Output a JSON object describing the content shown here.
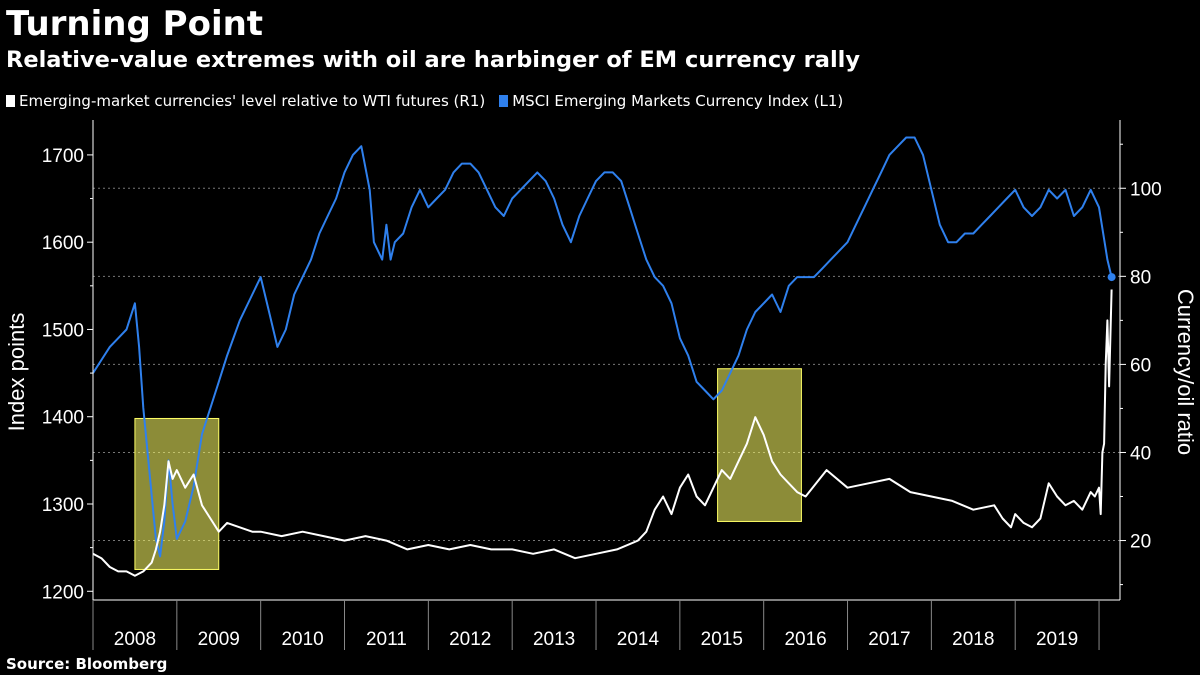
{
  "header": {
    "title": "Turning Point",
    "subtitle": "Relative-value extremes with oil are harbinger of EM currency rally"
  },
  "legend": [
    {
      "label": "Emerging-market currencies' level relative to WTI futures (R1)",
      "color": "#ffffff"
    },
    {
      "label": "MSCI Emerging Markets Currency Index (L1)",
      "color": "#2f80ed"
    }
  ],
  "footer": {
    "source": "Source: Bloomberg"
  },
  "chart_data": {
    "type": "line",
    "title": "Turning Point",
    "subtitle": "Relative-value extremes with oil are harbinger of EM currency rally",
    "x_labels": [
      "2008",
      "2009",
      "2010",
      "2011",
      "2012",
      "2013",
      "2014",
      "2015",
      "2016",
      "2017",
      "2018",
      "2019"
    ],
    "xlim": [
      2008.0,
      2020.25
    ],
    "left_axis": {
      "label": "Index points",
      "ylim": [
        1190,
        1740
      ],
      "ticks": [
        1200,
        1300,
        1400,
        1500,
        1600,
        1700
      ]
    },
    "right_axis": {
      "label": "Currency/oil ratio",
      "ylim": [
        6.5,
        115.5
      ],
      "ticks": [
        20,
        40,
        60,
        80,
        100
      ]
    },
    "grid": true,
    "legend_position": "top-left",
    "highlights": [
      {
        "x_range": [
          2008.5,
          2009.5
        ],
        "y_left_range": [
          1225,
          1398
        ],
        "color": "#ffff66"
      },
      {
        "x_range": [
          2015.45,
          2016.45
        ],
        "y_left_range": [
          1280,
          1455
        ],
        "color": "#ffff66"
      }
    ],
    "series": [
      {
        "name": "MSCI Emerging Markets Currency Index (L1)",
        "axis": "left",
        "color": "#2f80ed",
        "x": [
          2008.0,
          2008.1,
          2008.2,
          2008.3,
          2008.4,
          2008.5,
          2008.55,
          2008.6,
          2008.65,
          2008.7,
          2008.75,
          2008.8,
          2008.85,
          2008.9,
          2008.95,
          2009.0,
          2009.1,
          2009.2,
          2009.3,
          2009.4,
          2009.5,
          2009.6,
          2009.75,
          2009.9,
          2010.0,
          2010.1,
          2010.2,
          2010.3,
          2010.4,
          2010.5,
          2010.6,
          2010.7,
          2010.8,
          2010.9,
          2011.0,
          2011.1,
          2011.2,
          2011.3,
          2011.35,
          2011.45,
          2011.5,
          2011.55,
          2011.6,
          2011.7,
          2011.8,
          2011.9,
          2012.0,
          2012.1,
          2012.2,
          2012.3,
          2012.4,
          2012.5,
          2012.6,
          2012.7,
          2012.8,
          2012.9,
          2013.0,
          2013.1,
          2013.2,
          2013.3,
          2013.4,
          2013.5,
          2013.6,
          2013.7,
          2013.8,
          2013.9,
          2014.0,
          2014.1,
          2014.2,
          2014.3,
          2014.4,
          2014.5,
          2014.6,
          2014.7,
          2014.8,
          2014.9,
          2015.0,
          2015.1,
          2015.2,
          2015.3,
          2015.4,
          2015.5,
          2015.6,
          2015.7,
          2015.8,
          2015.9,
          2016.0,
          2016.1,
          2016.2,
          2016.3,
          2016.4,
          2016.5,
          2016.6,
          2016.7,
          2016.8,
          2016.9,
          2017.0,
          2017.1,
          2017.2,
          2017.3,
          2017.4,
          2017.5,
          2017.6,
          2017.7,
          2017.8,
          2017.9,
          2018.0,
          2018.1,
          2018.2,
          2018.3,
          2018.4,
          2018.5,
          2018.6,
          2018.7,
          2018.8,
          2018.9,
          2019.0,
          2019.1,
          2019.2,
          2019.3,
          2019.4,
          2019.5,
          2019.6,
          2019.7,
          2019.8,
          2019.9,
          2020.0,
          2020.1,
          2020.15
        ],
        "values": [
          1450,
          1465,
          1480,
          1490,
          1500,
          1530,
          1480,
          1410,
          1360,
          1310,
          1260,
          1240,
          1280,
          1350,
          1300,
          1260,
          1280,
          1320,
          1380,
          1410,
          1440,
          1470,
          1510,
          1540,
          1560,
          1520,
          1480,
          1500,
          1540,
          1560,
          1580,
          1610,
          1630,
          1650,
          1680,
          1700,
          1710,
          1660,
          1600,
          1580,
          1620,
          1580,
          1600,
          1610,
          1640,
          1660,
          1640,
          1650,
          1660,
          1680,
          1690,
          1690,
          1680,
          1660,
          1640,
          1630,
          1650,
          1660,
          1670,
          1680,
          1670,
          1650,
          1620,
          1600,
          1630,
          1650,
          1670,
          1680,
          1680,
          1670,
          1640,
          1610,
          1580,
          1560,
          1550,
          1530,
          1490,
          1470,
          1440,
          1430,
          1420,
          1430,
          1450,
          1470,
          1500,
          1520,
          1530,
          1540,
          1520,
          1550,
          1560,
          1560,
          1560,
          1570,
          1580,
          1590,
          1600,
          1620,
          1640,
          1660,
          1680,
          1700,
          1710,
          1720,
          1720,
          1700,
          1660,
          1620,
          1600,
          1600,
          1610,
          1610,
          1620,
          1630,
          1640,
          1650,
          1660,
          1640,
          1630,
          1640,
          1660,
          1650,
          1660,
          1630,
          1640,
          1660,
          1640,
          1580,
          1560
        ]
      },
      {
        "name": "Emerging-market currencies' level relative to WTI futures (R1)",
        "axis": "right",
        "color": "#ffffff",
        "x": [
          2008.0,
          2008.1,
          2008.2,
          2008.3,
          2008.4,
          2008.5,
          2008.6,
          2008.7,
          2008.75,
          2008.8,
          2008.85,
          2008.9,
          2008.95,
          2009.0,
          2009.1,
          2009.2,
          2009.3,
          2009.4,
          2009.5,
          2009.6,
          2009.75,
          2009.9,
          2010.0,
          2010.25,
          2010.5,
          2010.75,
          2011.0,
          2011.25,
          2011.5,
          2011.75,
          2012.0,
          2012.25,
          2012.5,
          2012.75,
          2013.0,
          2013.25,
          2013.5,
          2013.75,
          2014.0,
          2014.25,
          2014.5,
          2014.6,
          2014.7,
          2014.8,
          2014.9,
          2015.0,
          2015.1,
          2015.2,
          2015.3,
          2015.4,
          2015.5,
          2015.6,
          2015.7,
          2015.8,
          2015.9,
          2016.0,
          2016.1,
          2016.2,
          2016.3,
          2016.4,
          2016.5,
          2016.75,
          2017.0,
          2017.25,
          2017.5,
          2017.75,
          2018.0,
          2018.25,
          2018.5,
          2018.75,
          2018.85,
          2018.95,
          2019.0,
          2019.1,
          2019.2,
          2019.3,
          2019.4,
          2019.5,
          2019.6,
          2019.7,
          2019.8,
          2019.9,
          2019.95,
          2020.0,
          2020.02,
          2020.04,
          2020.06,
          2020.08,
          2020.1,
          2020.12,
          2020.15
        ],
        "values": [
          17,
          16,
          14,
          13,
          13,
          12,
          13,
          15,
          18,
          22,
          28,
          38,
          34,
          36,
          32,
          35,
          28,
          25,
          22,
          24,
          23,
          22,
          22,
          21,
          22,
          21,
          20,
          21,
          20,
          18,
          19,
          18,
          19,
          18,
          18,
          17,
          18,
          16,
          17,
          18,
          20,
          22,
          27,
          30,
          26,
          32,
          35,
          30,
          28,
          32,
          36,
          34,
          38,
          42,
          48,
          44,
          38,
          35,
          33,
          31,
          30,
          36,
          32,
          33,
          34,
          31,
          30,
          29,
          27,
          28,
          25,
          23,
          26,
          24,
          23,
          25,
          33,
          30,
          28,
          29,
          27,
          31,
          30,
          32,
          26,
          40,
          42,
          60,
          70,
          55,
          77
        ]
      }
    ]
  }
}
